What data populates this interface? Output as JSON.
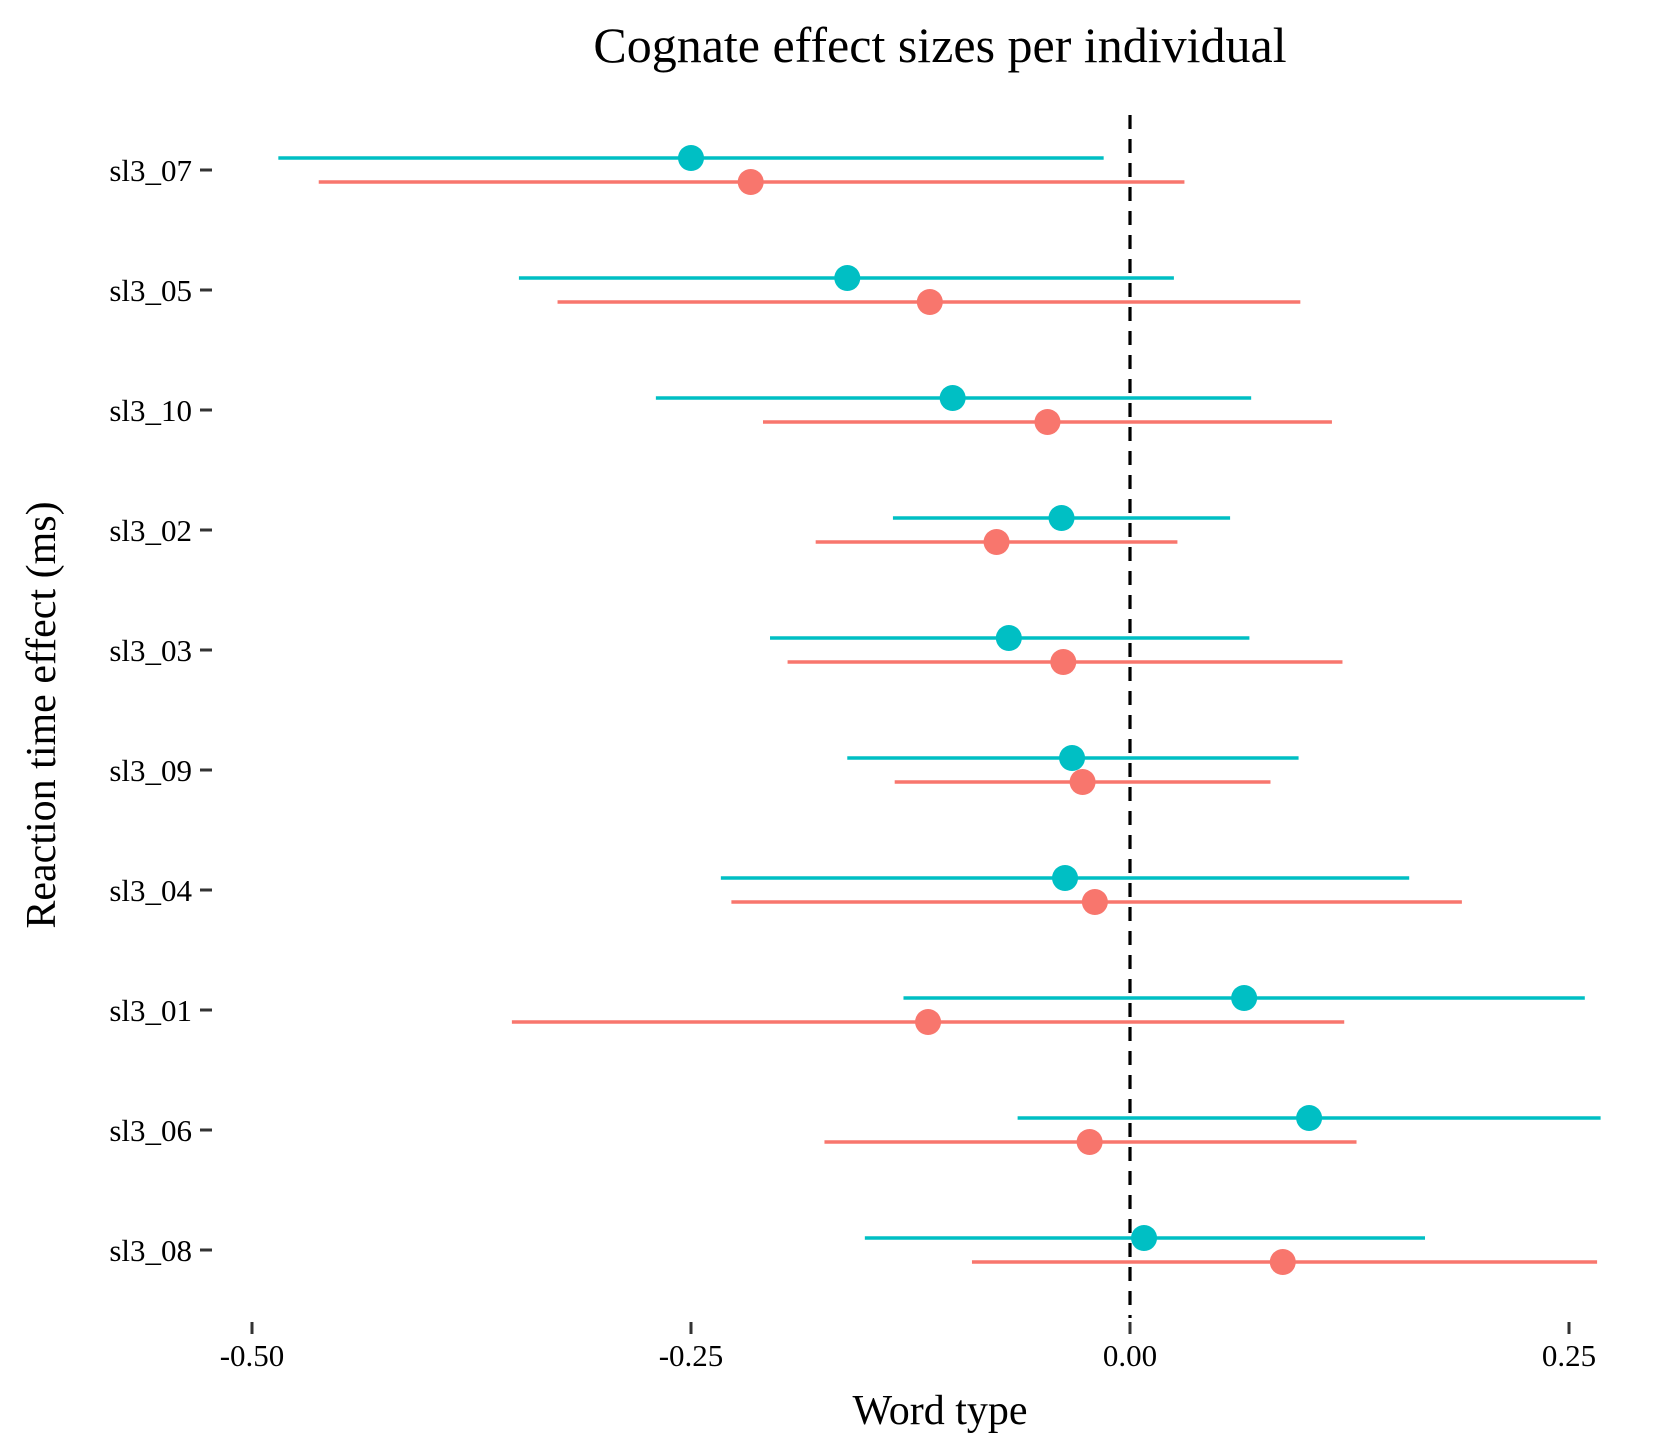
{
  "chart_data": {
    "type": "scatter",
    "title": "Cognate effect sizes per individual",
    "xlabel": "Word type",
    "ylabel": "Reaction time effect (ms)",
    "xlim": [
      -0.5,
      0.27
    ],
    "x_ticks": [
      "-0.50",
      "-0.25",
      "0.00",
      "0.25"
    ],
    "x_tick_values": [
      -0.5,
      -0.25,
      0.0,
      0.25
    ],
    "reference_line": {
      "x": 0.0,
      "style": "dashed"
    },
    "grid": false,
    "legend": "none",
    "categories": [
      "sl3_07",
      "sl3_05",
      "sl3_10",
      "sl3_02",
      "sl3_03",
      "sl3_09",
      "sl3_04",
      "sl3_01",
      "sl3_06",
      "sl3_08"
    ],
    "series": [
      {
        "color": "#00BFC4",
        "estimate": [
          -0.25,
          -0.161,
          -0.101,
          -0.039,
          -0.069,
          -0.033,
          -0.037,
          0.065,
          0.102,
          0.008
        ],
        "lower": [
          -0.485,
          -0.348,
          -0.27,
          -0.135,
          -0.205,
          -0.161,
          -0.233,
          -0.129,
          -0.064,
          -0.151
        ],
        "upper": [
          -0.015,
          0.025,
          0.069,
          0.057,
          0.068,
          0.096,
          0.159,
          0.259,
          0.268,
          0.168
        ]
      },
      {
        "color": "#F8766D",
        "estimate": [
          -0.216,
          -0.114,
          -0.047,
          -0.076,
          -0.038,
          -0.027,
          -0.02,
          -0.115,
          -0.023,
          0.087
        ],
        "lower": [
          -0.462,
          -0.326,
          -0.209,
          -0.179,
          -0.195,
          -0.134,
          -0.227,
          -0.352,
          -0.174,
          -0.09
        ],
        "upper": [
          0.031,
          0.097,
          0.115,
          0.027,
          0.121,
          0.08,
          0.189,
          0.122,
          0.129,
          0.266
        ]
      }
    ]
  }
}
